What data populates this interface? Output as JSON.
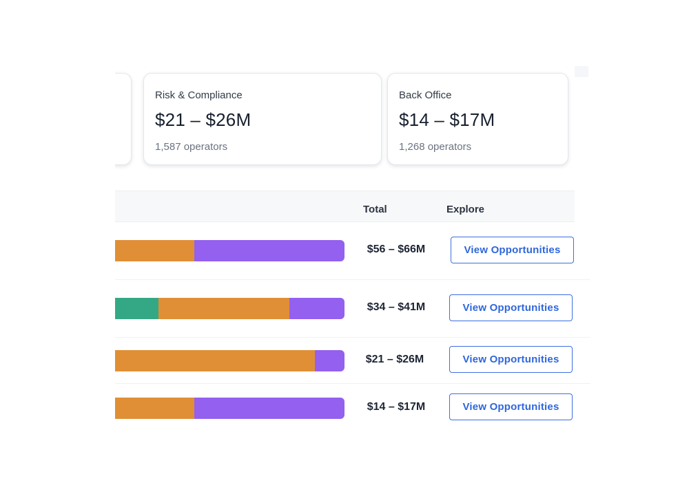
{
  "cards": [
    {
      "title": "Risk & Compliance",
      "value": "$21 – $26M",
      "operators": "1,587 operators"
    },
    {
      "title": "Back Office",
      "value": "$14 – $17M",
      "operators": "1,268 operators"
    }
  ],
  "table": {
    "headers": {
      "total": "Total",
      "explore": "Explore"
    },
    "colors": {
      "green": "#34a884",
      "orange": "#e08f36",
      "purple": "#9360f0",
      "button": "#2f66dc"
    },
    "rows": [
      {
        "total": "$56 – $66M",
        "button": "View Opportunities",
        "bar": [
          {
            "color": "orange",
            "fraction": 0.54
          },
          {
            "color": "purple",
            "fraction": 0.46
          }
        ]
      },
      {
        "total": "$34 – $41M",
        "button": "View Opportunities",
        "bar": [
          {
            "color": "green",
            "fraction": 0.43
          },
          {
            "color": "orange",
            "fraction": 0.4
          },
          {
            "color": "purple",
            "fraction": 0.17
          }
        ]
      },
      {
        "total": "$21 – $26M",
        "button": "View Opportunities",
        "bar": [
          {
            "color": "orange",
            "fraction": 0.91
          },
          {
            "color": "purple",
            "fraction": 0.09
          }
        ]
      },
      {
        "total": "$14 – $17M",
        "button": "View Opportunities",
        "bar": [
          {
            "color": "orange",
            "fraction": 0.54
          },
          {
            "color": "purple",
            "fraction": 0.46
          }
        ]
      }
    ]
  }
}
